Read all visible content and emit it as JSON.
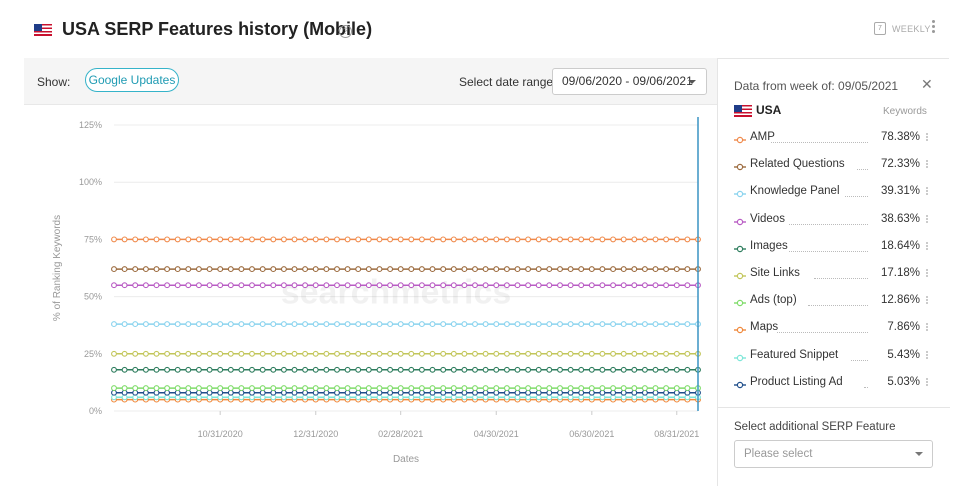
{
  "header": {
    "title": "USA SERP Features history (Mobile)",
    "help_icon": "help-circle-icon",
    "weekly_label": "WEEKLY",
    "calendar_glyph": "7"
  },
  "toolbar": {
    "show_label": "Show:",
    "google_updates_label": "Google Updates",
    "date_range_label": "Select date range:",
    "date_range_value": "09/06/2020 - 09/06/2021"
  },
  "watermark": "searchmetrics",
  "panel": {
    "header": "Data from week of: 09/05/2021",
    "country": "USA",
    "keywords_header": "Keywords",
    "items": [
      {
        "label": "AMP",
        "value": "78.38%",
        "color": "#f08a4b"
      },
      {
        "label": "Related Questions",
        "value": "72.33%",
        "color": "#9c6b3f"
      },
      {
        "label": "Knowledge Panel",
        "value": "39.31%",
        "color": "#8ad3ee"
      },
      {
        "label": "Videos",
        "value": "38.63%",
        "color": "#b95cc4"
      },
      {
        "label": "Images",
        "value": "18.64%",
        "color": "#2e7d5e"
      },
      {
        "label": "Site Links",
        "value": "17.18%",
        "color": "#c2c65a"
      },
      {
        "label": "Ads (top)",
        "value": "12.86%",
        "color": "#7fdc6a"
      },
      {
        "label": "Maps",
        "value": "7.86%",
        "color": "#f0883a"
      },
      {
        "label": "Featured Snippet",
        "value": "5.43%",
        "color": "#7de6d8"
      },
      {
        "label": "Product Listing Ad",
        "value": "5.03%",
        "color": "#1f4e8a"
      }
    ],
    "add_label": "Select additional SERP Feature",
    "add_placeholder": "Please select"
  },
  "chart_data": {
    "type": "line",
    "xlabel": "Dates",
    "ylabel": "% of Ranking Keywords",
    "ylim": [
      0,
      125
    ],
    "yticks": [
      "0%",
      "25%",
      "50%",
      "75%",
      "100%",
      "125%"
    ],
    "xticks": [
      {
        "label": "10/31/2020",
        "week": 10
      },
      {
        "label": "12/31/2020",
        "week": 19
      },
      {
        "label": "02/28/2021",
        "week": 27
      },
      {
        "label": "04/30/2021",
        "week": 36
      },
      {
        "label": "06/30/2021",
        "week": 45
      },
      {
        "label": "08/31/2021",
        "week": 53
      }
    ],
    "grid": "horizontal",
    "series": [
      {
        "name": "Maps",
        "color": "#f0883a",
        "values": [
          5,
          5,
          5,
          5,
          5,
          5,
          5,
          5,
          5,
          5,
          5,
          5,
          5,
          5,
          5,
          5,
          5,
          5,
          5,
          5,
          5,
          5,
          5,
          5,
          5,
          5,
          5,
          5,
          5,
          5,
          5,
          5,
          5,
          5,
          5,
          5,
          5,
          5,
          5,
          5,
          5,
          5,
          5,
          5,
          5,
          5,
          5,
          5,
          5,
          5,
          5,
          5,
          5,
          5,
          5,
          5
        ]
      },
      {
        "name": "Featured Snippet",
        "color": "#7de6d8",
        "values": [
          6,
          6,
          6,
          6,
          6,
          6,
          6,
          6,
          6,
          6,
          6,
          6,
          6,
          6,
          6,
          6,
          6,
          6,
          6,
          6,
          6,
          6,
          6,
          6,
          6,
          6,
          6,
          6,
          6,
          6,
          6,
          6,
          6,
          6,
          6,
          6,
          6,
          6,
          6,
          6,
          6,
          6,
          6,
          6,
          6,
          6,
          6,
          6,
          6,
          6,
          6,
          6,
          6,
          6,
          6,
          6
        ]
      },
      {
        "name": "Product Listing Ad",
        "color": "#1f4e8a",
        "values": [
          8,
          8,
          8,
          8,
          8,
          8,
          8,
          8,
          8,
          8,
          8,
          8,
          8,
          8,
          8,
          8,
          8,
          8,
          8,
          8,
          8,
          8,
          8,
          8,
          8,
          8,
          8,
          8,
          8,
          8,
          8,
          8,
          8,
          8,
          8,
          8,
          8,
          8,
          8,
          8,
          8,
          8,
          8,
          8,
          8,
          8,
          8,
          8,
          8,
          8,
          8,
          8,
          8,
          8,
          8,
          8
        ]
      },
      {
        "name": "Ads (top)",
        "color": "#7fdc6a",
        "values": [
          10,
          10,
          10,
          10,
          10,
          10,
          10,
          10,
          10,
          10,
          10,
          10,
          10,
          10,
          10,
          10,
          10,
          10,
          10,
          10,
          10,
          10,
          10,
          10,
          10,
          10,
          10,
          10,
          10,
          10,
          10,
          10,
          10,
          10,
          10,
          10,
          10,
          10,
          10,
          10,
          10,
          10,
          10,
          10,
          10,
          10,
          10,
          10,
          10,
          10,
          10,
          10,
          10,
          10,
          10,
          10
        ]
      },
      {
        "name": "Images",
        "color": "#2e7d5e",
        "values": [
          18,
          18,
          18,
          18,
          18,
          18,
          18,
          18,
          18,
          18,
          18,
          18,
          18,
          18,
          18,
          18,
          18,
          18,
          18,
          18,
          18,
          18,
          18,
          18,
          18,
          18,
          18,
          18,
          18,
          18,
          18,
          18,
          18,
          18,
          18,
          18,
          18,
          18,
          18,
          18,
          18,
          18,
          18,
          18,
          18,
          18,
          18,
          18,
          18,
          18,
          18,
          18,
          18,
          18,
          18,
          18
        ]
      },
      {
        "name": "Site Links",
        "color": "#c2c65a",
        "values": [
          25,
          25,
          25,
          25,
          25,
          25,
          25,
          25,
          25,
          25,
          25,
          25,
          25,
          25,
          25,
          25,
          25,
          25,
          25,
          25,
          25,
          25,
          25,
          25,
          25,
          25,
          25,
          25,
          25,
          25,
          25,
          25,
          25,
          25,
          25,
          25,
          25,
          25,
          25,
          25,
          25,
          25,
          25,
          25,
          25,
          25,
          25,
          25,
          25,
          25,
          25,
          25,
          25,
          25,
          25,
          25
        ]
      },
      {
        "name": "Knowledge Panel",
        "color": "#8ad3ee",
        "values": [
          38,
          38,
          38,
          38,
          38,
          38,
          38,
          38,
          38,
          38,
          38,
          38,
          38,
          38,
          38,
          38,
          38,
          38,
          38,
          38,
          38,
          38,
          38,
          38,
          38,
          38,
          38,
          38,
          38,
          38,
          38,
          38,
          38,
          38,
          38,
          38,
          38,
          38,
          38,
          38,
          38,
          38,
          38,
          38,
          38,
          38,
          38,
          38,
          38,
          38,
          38,
          38,
          38,
          38,
          38,
          38
        ]
      },
      {
        "name": "Videos",
        "color": "#b95cc4",
        "values": [
          55,
          55,
          55,
          55,
          55,
          55,
          55,
          55,
          55,
          55,
          55,
          55,
          55,
          55,
          55,
          55,
          55,
          55,
          55,
          55,
          55,
          55,
          55,
          55,
          55,
          55,
          55,
          55,
          55,
          55,
          55,
          55,
          55,
          55,
          55,
          55,
          55,
          55,
          55,
          55,
          55,
          55,
          55,
          55,
          55,
          55,
          55,
          55,
          55,
          55,
          55,
          55,
          55,
          55,
          55,
          55
        ]
      },
      {
        "name": "Related Questions",
        "color": "#9c6b3f",
        "values": [
          62,
          62,
          62,
          62,
          62,
          62,
          62,
          62,
          62,
          62,
          62,
          62,
          62,
          62,
          62,
          62,
          62,
          62,
          62,
          62,
          62,
          62,
          62,
          62,
          62,
          62,
          62,
          62,
          62,
          62,
          62,
          62,
          62,
          62,
          62,
          62,
          62,
          62,
          62,
          62,
          62,
          62,
          62,
          62,
          62,
          62,
          62,
          62,
          62,
          62,
          62,
          62,
          62,
          62,
          62,
          62
        ]
      },
      {
        "name": "AMP",
        "color": "#f08a4b",
        "values": [
          75,
          75,
          75,
          75,
          75,
          75,
          75,
          75,
          75,
          75,
          75,
          75,
          75,
          75,
          75,
          75,
          75,
          75,
          75,
          75,
          75,
          75,
          75,
          75,
          75,
          75,
          75,
          75,
          75,
          75,
          75,
          75,
          75,
          75,
          75,
          75,
          75,
          75,
          75,
          75,
          75,
          75,
          75,
          75,
          75,
          75,
          75,
          75,
          75,
          75,
          75,
          75,
          75,
          75,
          75,
          75
        ]
      }
    ],
    "marker_week": 55,
    "marker_color": "#3a93c3"
  }
}
